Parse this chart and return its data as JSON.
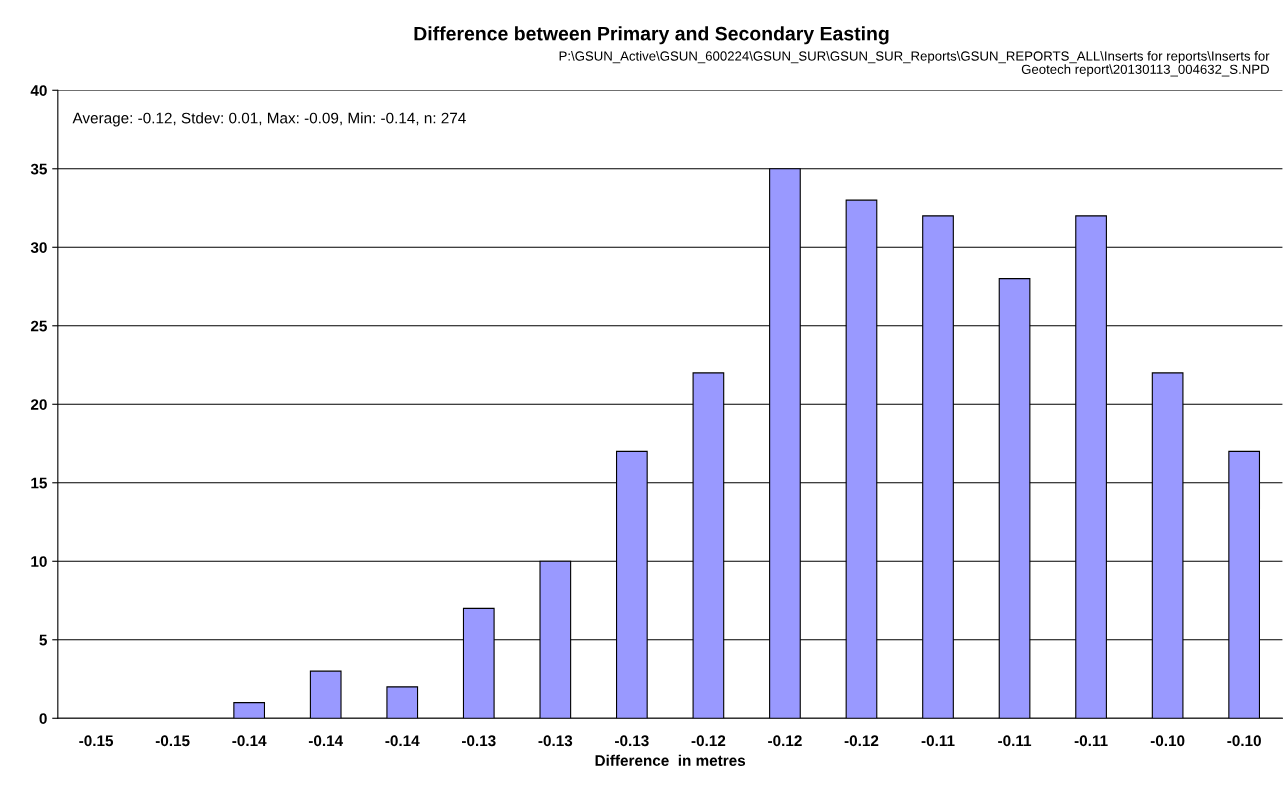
{
  "chart_data": {
    "type": "bar",
    "title": "Difference between Primary and Secondary Easting",
    "xlabel": "Difference  in metres",
    "annotations": [
      "P:\\GSUN_Active\\GSUN_600224\\GSUN_SUR\\GSUN_SUR_Reports\\GSUN_REPORTS_ALL\\Inserts for reports\\Inserts for\nGeotech report\\20130113_004632_S.NPD",
      "Average: -0.12, Stdev: 0.01, Max: -0.09, Min: -0.14, n: 274"
    ],
    "categories": [
      "-0.15",
      "-0.15",
      "-0.14",
      "-0.14",
      "-0.14",
      "-0.13",
      "-0.13",
      "-0.13",
      "-0.12",
      "-0.12",
      "-0.12",
      "-0.11",
      "-0.11",
      "-0.11",
      "-0.10",
      "-0.10"
    ],
    "values": [
      0,
      0,
      1,
      3,
      2,
      7,
      10,
      17,
      22,
      35,
      33,
      32,
      28,
      32,
      22,
      17
    ],
    "color": "#9999ff",
    "ylim": [
      0,
      40
    ],
    "yticks": [
      0,
      5,
      10,
      15,
      20,
      25,
      30,
      35,
      40
    ],
    "grid": "y"
  }
}
